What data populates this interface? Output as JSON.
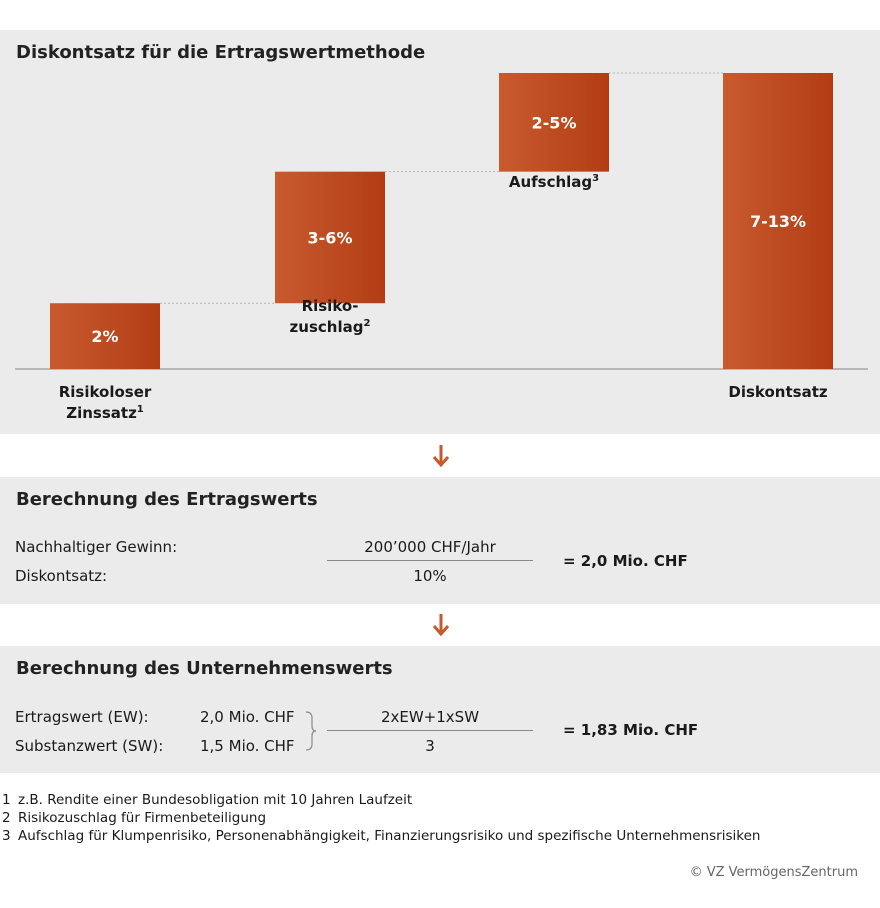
{
  "section1": {
    "title": "Diskontsatz für die Ertragswertmethode"
  },
  "chart_data": {
    "type": "waterfall",
    "title": "Diskontsatz für die Ertragswertmethode",
    "unit": "%",
    "steps": [
      {
        "label": "Risikoloser Zinssatz",
        "footnote": "1",
        "value_label": "2%",
        "start": 0,
        "end": 2
      },
      {
        "label": "Risikozuschlag",
        "footnote": "2",
        "value_label": "3-6%",
        "start": 2,
        "end": 6
      },
      {
        "label": "Aufschlag",
        "footnote": "3",
        "value_label": "2-5%",
        "start": 6,
        "end": 9
      },
      {
        "label": "Diskontsatz",
        "footnote": "",
        "value_label": "7-13%",
        "start": 0,
        "end": 9
      }
    ],
    "labels": {
      "s1_line1": "Risikoloser",
      "s1_line2": "Zinssatz",
      "s1_sup": "1",
      "s2_line1": "Risiko-",
      "s2_line2": "zuschlag",
      "s2_sup": "2",
      "s3_line1": "Aufschlag",
      "s3_sup": "3",
      "s4_line1": "Diskontsatz"
    },
    "colors": {
      "bar_start": "#c95a2e",
      "bar_end": "#b23d15",
      "arrow": "#c65a2b"
    }
  },
  "section2": {
    "title": "Berechnung des Ertragswerts",
    "row1_label": "Nachhaltiger Gewinn:",
    "row2_label": "Diskontsatz:",
    "numerator": "200’000 CHF/Jahr",
    "denominator": "10%",
    "result": "= 2,0 Mio. CHF"
  },
  "section3": {
    "title": "Berechnung des Unternehmenswerts",
    "row1_label": "Ertragswert (EW):",
    "row1_value": "2,0 Mio. CHF",
    "row2_label": "Substanzwert (SW):",
    "row2_value": "1,5 Mio. CHF",
    "numerator": "2xEW+1xSW",
    "denominator": "3",
    "result": "= 1,83 Mio. CHF"
  },
  "footnotes": [
    {
      "num": "1",
      "text": "z.B. Rendite einer Bundesobligation mit 10 Jahren Laufzeit"
    },
    {
      "num": "2",
      "text": "Risikozuschlag für Firmenbeteiligung"
    },
    {
      "num": "3",
      "text": "Aufschlag für Klumpenrisiko, Personenabhängigkeit, Finanzierungsrisiko und spezifische Unternehmensrisiken"
    }
  ],
  "copyright": "© VZ VermögensZentrum"
}
